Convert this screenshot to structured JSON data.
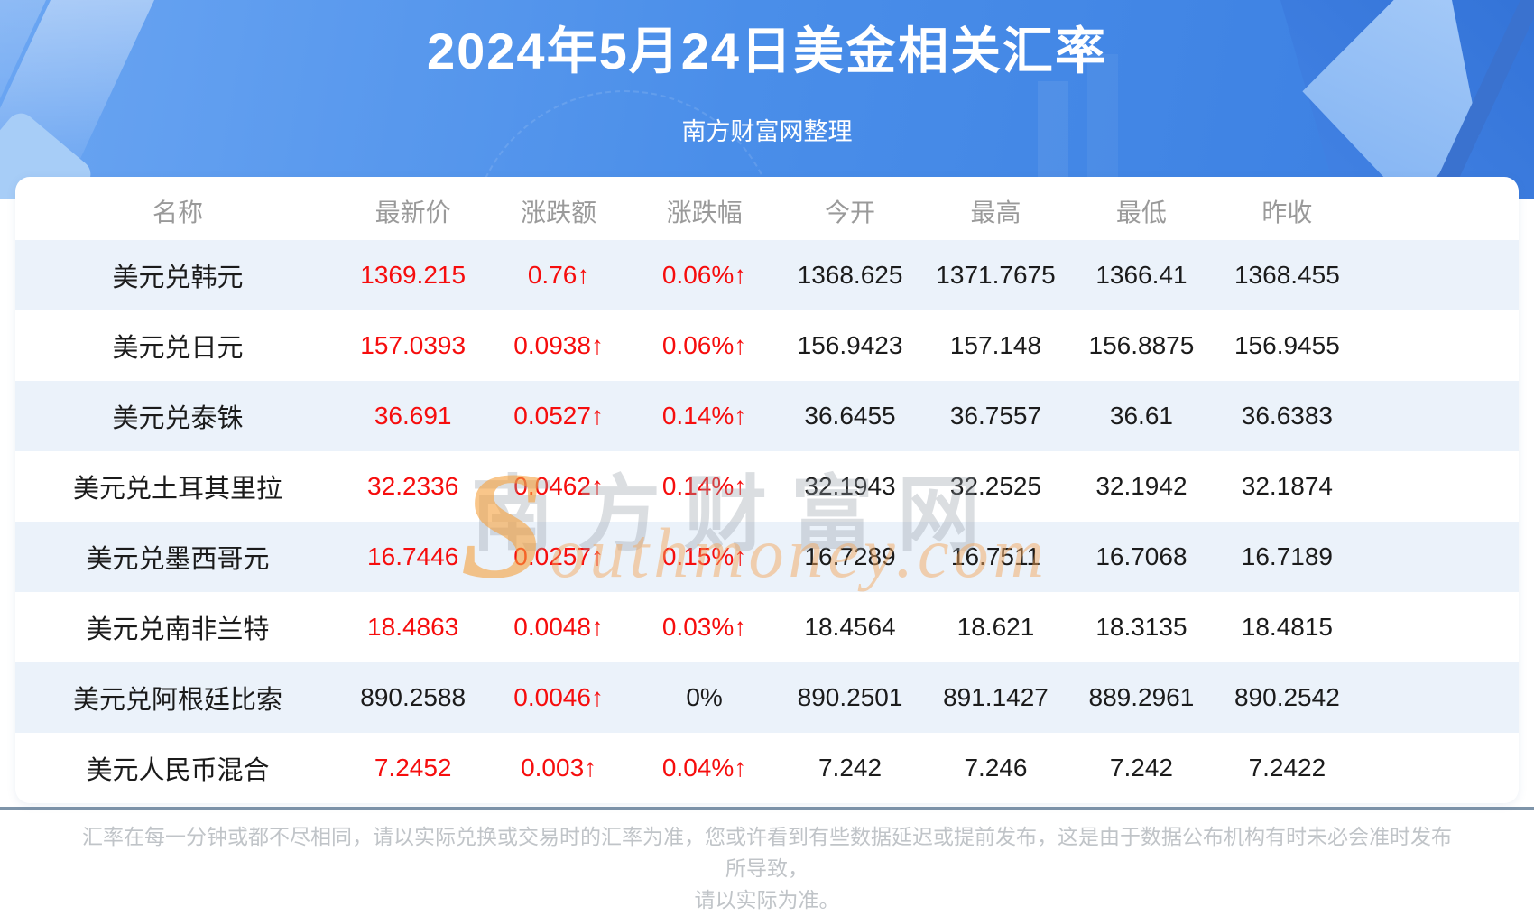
{
  "banner": {
    "title": "2024年5月24日美金相关汇率",
    "subtitle": "南方财富网整理"
  },
  "watermark": {
    "cn": "南方财富网",
    "en": "Southmoney.com"
  },
  "chart_data": {
    "type": "table",
    "title": "2024年5月24日美金相关汇率",
    "columns": [
      "名称",
      "最新价",
      "涨跌额",
      "涨跌幅",
      "今开",
      "最高",
      "最低",
      "昨收"
    ],
    "rows": [
      {
        "name": "美元兑韩元",
        "latest": "1369.215",
        "latest_red": true,
        "change": "0.76↑",
        "pct": "0.06%↑",
        "pct_red": true,
        "open": "1368.625",
        "high": "1371.7675",
        "low": "1366.41",
        "prev": "1368.455"
      },
      {
        "name": "美元兑日元",
        "latest": "157.0393",
        "latest_red": true,
        "change": "0.0938↑",
        "pct": "0.06%↑",
        "pct_red": true,
        "open": "156.9423",
        "high": "157.148",
        "low": "156.8875",
        "prev": "156.9455"
      },
      {
        "name": "美元兑泰铢",
        "latest": "36.691",
        "latest_red": true,
        "change": "0.0527↑",
        "pct": "0.14%↑",
        "pct_red": true,
        "open": "36.6455",
        "high": "36.7557",
        "low": "36.61",
        "prev": "36.6383"
      },
      {
        "name": "美元兑土耳其里拉",
        "latest": "32.2336",
        "latest_red": true,
        "change": "0.0462↑",
        "pct": "0.14%↑",
        "pct_red": true,
        "open": "32.1943",
        "high": "32.2525",
        "low": "32.1942",
        "prev": "32.1874"
      },
      {
        "name": "美元兑墨西哥元",
        "latest": "16.7446",
        "latest_red": true,
        "change": "0.0257↑",
        "pct": "0.15%↑",
        "pct_red": true,
        "open": "16.7289",
        "high": "16.7511",
        "low": "16.7068",
        "prev": "16.7189"
      },
      {
        "name": "美元兑南非兰特",
        "latest": "18.4863",
        "latest_red": true,
        "change": "0.0048↑",
        "pct": "0.03%↑",
        "pct_red": true,
        "open": "18.4564",
        "high": "18.621",
        "low": "18.3135",
        "prev": "18.4815"
      },
      {
        "name": "美元兑阿根廷比索",
        "latest": "890.2588",
        "latest_red": false,
        "change": "0.0046↑",
        "pct": "0%",
        "pct_red": false,
        "open": "890.2501",
        "high": "891.1427",
        "low": "889.2961",
        "prev": "890.2542"
      },
      {
        "name": "美元人民币混合",
        "latest": "7.2452",
        "latest_red": true,
        "change": "0.003↑",
        "pct": "0.04%↑",
        "pct_red": true,
        "open": "7.242",
        "high": "7.246",
        "low": "7.242",
        "prev": "7.2422"
      }
    ]
  },
  "footer": {
    "line1": "汇率在每一分钟或都不尽相同，请以实际兑换或交易时的汇率为准，您或许看到有些数据延迟或提前发布，这是由于数据公布机构有时未必会准时发布所导致，",
    "line2": "请以实际为准。"
  },
  "colors": {
    "red": "#f60d0d",
    "text": "#1b1b1b",
    "header_gray": "#9a9a9a",
    "row_alt": "#ebf2fa",
    "divider": "#7e94a9",
    "footer_gray": "#c0c4c8",
    "banner_blue": "#4a8ee9"
  }
}
